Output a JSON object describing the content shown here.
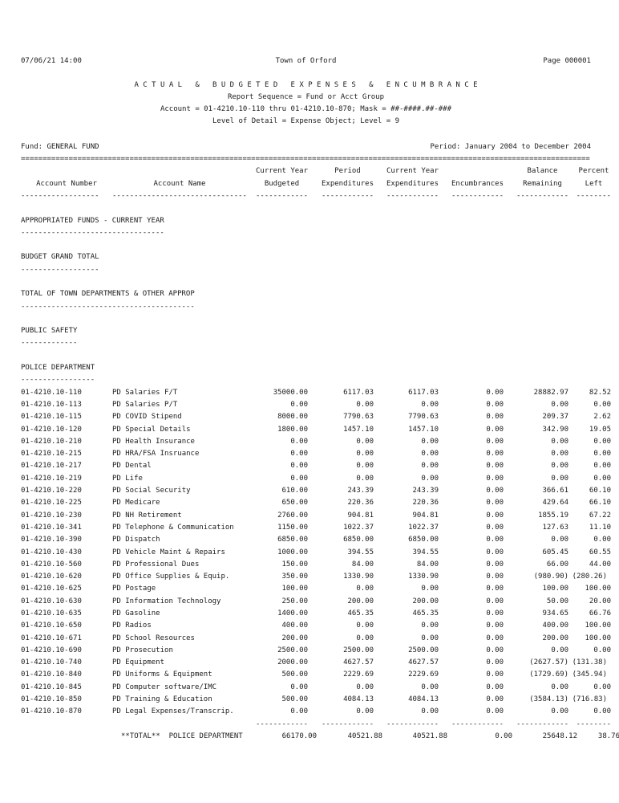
{
  "header": {
    "datetime": "07/06/21 14:00",
    "organization": "Town of Orford",
    "page": "Page 000001",
    "title": "A C T U A L   &   B U D G E T E D   E X P E N S E S   &   E N C U M B R A N C E",
    "sequence": "Report Sequence = Fund or Acct Group",
    "account_range": "Account = 01-4210.10-110 thru 01-4210.10-870; Mask = ##-####.##-###",
    "level_detail": "Level of Detail = Expense Object; Level = 9",
    "fund": "Fund: GENERAL FUND",
    "period": "Period: January 2004 to December 2004",
    "separator_char": "="
  },
  "columns": {
    "line1": [
      "",
      "",
      "Current Year",
      "Period",
      "Current Year",
      "",
      "Balance",
      "Percent"
    ],
    "line2": [
      "Account Number",
      "Account Name",
      "Budgeted",
      "Expenditures",
      "Expenditures",
      "Encumbrances",
      "Remaining",
      "Left"
    ],
    "dash_counts": [
      18,
      31,
      12,
      12,
      12,
      12,
      12,
      8
    ]
  },
  "sections": [
    {
      "label": "APPROPRIATED FUNDS - CURRENT YEAR"
    },
    {
      "label": "BUDGET GRAND TOTAL"
    },
    {
      "label": "TOTAL OF TOWN DEPARTMENTS & OTHER APPROP"
    },
    {
      "label": "PUBLIC SAFETY"
    },
    {
      "label": "POLICE DEPARTMENT"
    }
  ],
  "table": {
    "rows": [
      {
        "account": "01-4210.10-110",
        "name": "PD Salaries F/T",
        "values": [
          "35000.00",
          "6117.03",
          "6117.03",
          "0.00",
          "28882.97",
          "82.52"
        ]
      },
      {
        "account": "01-4210.10-113",
        "name": "PD Salaries P/T",
        "values": [
          "0.00",
          "0.00",
          "0.00",
          "0.00",
          "0.00",
          "0.00"
        ]
      },
      {
        "account": "01-4210.10-115",
        "name": "PD COVID Stipend",
        "values": [
          "8000.00",
          "7790.63",
          "7790.63",
          "0.00",
          "209.37",
          "2.62"
        ]
      },
      {
        "account": "01-4210.10-120",
        "name": "PD Special Details",
        "values": [
          "1800.00",
          "1457.10",
          "1457.10",
          "0.00",
          "342.90",
          "19.05"
        ]
      },
      {
        "account": "01-4210.10-210",
        "name": "PD Health Insurance",
        "values": [
          "0.00",
          "0.00",
          "0.00",
          "0.00",
          "0.00",
          "0.00"
        ]
      },
      {
        "account": "01-4210.10-215",
        "name": "PD HRA/FSA Insruance",
        "values": [
          "0.00",
          "0.00",
          "0.00",
          "0.00",
          "0.00",
          "0.00"
        ]
      },
      {
        "account": "01-4210.10-217",
        "name": "PD Dental",
        "values": [
          "0.00",
          "0.00",
          "0.00",
          "0.00",
          "0.00",
          "0.00"
        ]
      },
      {
        "account": "01-4210.10-219",
        "name": "PD Life",
        "values": [
          "0.00",
          "0.00",
          "0.00",
          "0.00",
          "0.00",
          "0.00"
        ]
      },
      {
        "account": "01-4210.10-220",
        "name": "PD Social Security",
        "values": [
          "610.00",
          "243.39",
          "243.39",
          "0.00",
          "366.61",
          "60.10"
        ]
      },
      {
        "account": "01-4210.10-225",
        "name": "PD Medicare",
        "values": [
          "650.00",
          "220.36",
          "220.36",
          "0.00",
          "429.64",
          "66.10"
        ]
      },
      {
        "account": "01-4210.10-230",
        "name": "PD NH Retirement",
        "values": [
          "2760.00",
          "904.81",
          "904.81",
          "0.00",
          "1855.19",
          "67.22"
        ]
      },
      {
        "account": "01-4210.10-341",
        "name": "PD Telephone & Communication",
        "values": [
          "1150.00",
          "1022.37",
          "1022.37",
          "0.00",
          "127.63",
          "11.10"
        ]
      },
      {
        "account": "01-4210.10-390",
        "name": "PD Dispatch",
        "values": [
          "6850.00",
          "6850.00",
          "6850.00",
          "0.00",
          "0.00",
          "0.00"
        ]
      },
      {
        "account": "01-4210.10-430",
        "name": "PD Vehicle Maint & Repairs",
        "values": [
          "1000.00",
          "394.55",
          "394.55",
          "0.00",
          "605.45",
          "60.55"
        ]
      },
      {
        "account": "01-4210.10-560",
        "name": "PD Professional Dues",
        "values": [
          "150.00",
          "84.00",
          "84.00",
          "0.00",
          "66.00",
          "44.00"
        ]
      },
      {
        "account": "01-4210.10-620",
        "name": "PD Office Supplies & Equip.",
        "values": [
          "350.00",
          "1330.90",
          "1330.90",
          "0.00",
          "(980.90)",
          "(280.26)"
        ]
      },
      {
        "account": "01-4210.10-625",
        "name": "PD Postage",
        "values": [
          "100.00",
          "0.00",
          "0.00",
          "0.00",
          "100.00",
          "100.00"
        ]
      },
      {
        "account": "01-4210.10-630",
        "name": "PD Information Technology",
        "values": [
          "250.00",
          "200.00",
          "200.00",
          "0.00",
          "50.00",
          "20.00"
        ]
      },
      {
        "account": "01-4210.10-635",
        "name": "PD Gasoline",
        "values": [
          "1400.00",
          "465.35",
          "465.35",
          "0.00",
          "934.65",
          "66.76"
        ]
      },
      {
        "account": "01-4210.10-650",
        "name": "PD Radios",
        "values": [
          "400.00",
          "0.00",
          "0.00",
          "0.00",
          "400.00",
          "100.00"
        ]
      },
      {
        "account": "01-4210.10-671",
        "name": "PD School Resources",
        "values": [
          "200.00",
          "0.00",
          "0.00",
          "0.00",
          "200.00",
          "100.00"
        ]
      },
      {
        "account": "01-4210.10-690",
        "name": "PD Prosecution",
        "values": [
          "2500.00",
          "2500.00",
          "2500.00",
          "0.00",
          "0.00",
          "0.00"
        ]
      },
      {
        "account": "01-4210.10-740",
        "name": "PD Equipment",
        "values": [
          "2000.00",
          "4627.57",
          "4627.57",
          "0.00",
          "(2627.57)",
          "(131.38)"
        ]
      },
      {
        "account": "01-4210.10-840",
        "name": "PD Uniforms & Equipment",
        "values": [
          "500.00",
          "2229.69",
          "2229.69",
          "0.00",
          "(1729.69)",
          "(345.94)"
        ]
      },
      {
        "account": "01-4210.10-845",
        "name": "PD Computer software/IMC",
        "values": [
          "0.00",
          "0.00",
          "0.00",
          "0.00",
          "0.00",
          "0.00"
        ]
      },
      {
        "account": "01-4210.10-850",
        "name": "PD Training & Education",
        "values": [
          "500.00",
          "4084.13",
          "4084.13",
          "0.00",
          "(3584.13)",
          "(716.83)"
        ]
      },
      {
        "account": "01-4210.10-870",
        "name": "PD Legal Expenses/Transcrip.",
        "values": [
          "0.00",
          "0.00",
          "0.00",
          "0.00",
          "0.00",
          "0.00"
        ]
      }
    ]
  },
  "totals": {
    "label": "**TOTAL**",
    "department": "POLICE DEPARTMENT",
    "values": [
      "66170.00",
      "40521.88",
      "40521.88",
      "0.00",
      "25648.12",
      "38.76"
    ]
  }
}
